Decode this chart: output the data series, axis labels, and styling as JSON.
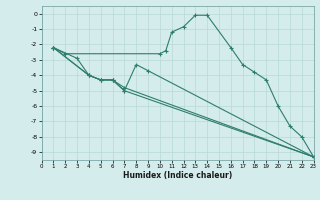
{
  "xlabel": "Humidex (Indice chaleur)",
  "xlim": [
    0,
    23
  ],
  "ylim": [
    -9.5,
    0.5
  ],
  "yticks": [
    0,
    -1,
    -2,
    -3,
    -4,
    -5,
    -6,
    -7,
    -8,
    -9
  ],
  "xticks": [
    0,
    1,
    2,
    3,
    4,
    5,
    6,
    7,
    8,
    9,
    10,
    11,
    12,
    13,
    14,
    15,
    16,
    17,
    18,
    19,
    20,
    21,
    22,
    23
  ],
  "bg_color": "#d4ecec",
  "line_color": "#2e7d6e",
  "grid_color": "#b8d8d8",
  "lines": [
    {
      "x": [
        1,
        2,
        10,
        10.5,
        11,
        12,
        13,
        14,
        16,
        17,
        18,
        19,
        20,
        21,
        22,
        23
      ],
      "y": [
        -2.2,
        -2.6,
        -2.6,
        -2.4,
        -1.2,
        -0.85,
        -0.1,
        -0.1,
        -2.2,
        -3.3,
        -3.8,
        -4.3,
        -6.0,
        -7.3,
        -8.0,
        -9.3
      ]
    },
    {
      "x": [
        1,
        4,
        5,
        6,
        7,
        8,
        9,
        23
      ],
      "y": [
        -2.2,
        -4.0,
        -4.3,
        -4.3,
        -5.0,
        -3.3,
        -3.7,
        -9.3
      ]
    },
    {
      "x": [
        1,
        3,
        4,
        5,
        6,
        7,
        23
      ],
      "y": [
        -2.2,
        -2.9,
        -4.0,
        -4.3,
        -4.3,
        -4.8,
        -9.3
      ]
    },
    {
      "x": [
        1,
        4,
        5,
        6,
        7,
        23
      ],
      "y": [
        -2.2,
        -4.0,
        -4.3,
        -4.3,
        -5.0,
        -9.3
      ]
    }
  ]
}
